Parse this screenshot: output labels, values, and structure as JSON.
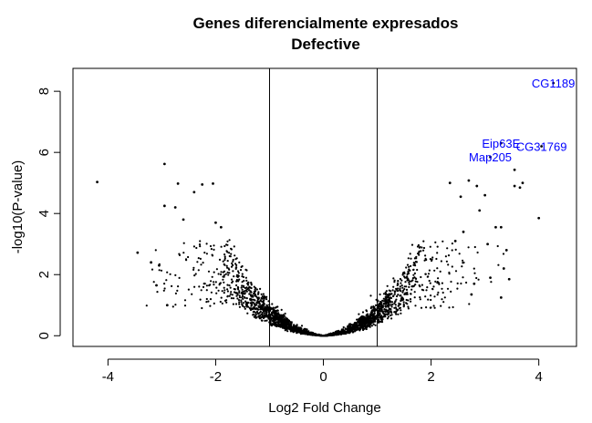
{
  "chart_data": {
    "type": "scatter",
    "title": "Genes diferencialmente expresados",
    "subtitle": "Defective",
    "xlabel": "Log2 Fold Change",
    "ylabel": "-log10(P-value)",
    "xlim": [
      -4.65,
      4.7
    ],
    "ylim": [
      -0.35,
      8.75
    ],
    "xticks": [
      -4,
      -2,
      0,
      2,
      4
    ],
    "xtick_labels": [
      "-4",
      "-2",
      "0",
      "2",
      "4"
    ],
    "yticks": [
      0,
      2,
      4,
      6,
      8
    ],
    "ytick_labels": [
      "0",
      "2",
      "4",
      "6",
      "8"
    ],
    "vlines": [
      -1,
      1
    ],
    "grid": false,
    "point_color": "#000000",
    "label_color": "#0000ff",
    "labeled_points": [
      {
        "label": "CG1189",
        "x": 4.27,
        "y": 8.27
      },
      {
        "label": "Eip63E",
        "x": 3.3,
        "y": 6.3
      },
      {
        "label": "CG31769",
        "x": 4.05,
        "y": 6.2
      },
      {
        "label": "Map205",
        "x": 3.1,
        "y": 5.85
      }
    ],
    "highlight_points": [
      {
        "x": -4.2,
        "y": 5.03
      },
      {
        "x": -2.95,
        "y": 5.62
      },
      {
        "x": -2.7,
        "y": 4.98
      },
      {
        "x": -2.25,
        "y": 4.95
      },
      {
        "x": -2.05,
        "y": 4.98
      },
      {
        "x": -2.4,
        "y": 4.7
      },
      {
        "x": -2.75,
        "y": 4.2
      },
      {
        "x": -2.95,
        "y": 4.25
      },
      {
        "x": -2.6,
        "y": 3.8
      },
      {
        "x": -2.0,
        "y": 3.7
      },
      {
        "x": -1.9,
        "y": 3.55
      },
      {
        "x": -3.45,
        "y": 2.72
      },
      {
        "x": -3.2,
        "y": 2.4
      },
      {
        "x": -3.05,
        "y": 2.3
      },
      {
        "x": -2.9,
        "y": 1.0
      },
      {
        "x": -3.1,
        "y": 1.65
      },
      {
        "x": 2.35,
        "y": 5.0
      },
      {
        "x": 2.7,
        "y": 5.08
      },
      {
        "x": 2.85,
        "y": 4.9
      },
      {
        "x": 2.55,
        "y": 4.55
      },
      {
        "x": 3.0,
        "y": 4.6
      },
      {
        "x": 2.9,
        "y": 4.1
      },
      {
        "x": 3.55,
        "y": 5.43
      },
      {
        "x": 3.55,
        "y": 4.9
      },
      {
        "x": 3.7,
        "y": 5.0
      },
      {
        "x": 3.65,
        "y": 4.85
      },
      {
        "x": 4.0,
        "y": 3.85
      },
      {
        "x": 3.2,
        "y": 3.55
      },
      {
        "x": 3.3,
        "y": 3.55
      },
      {
        "x": 3.4,
        "y": 2.8
      },
      {
        "x": 3.35,
        "y": 2.2
      },
      {
        "x": 3.45,
        "y": 1.85
      },
      {
        "x": 3.3,
        "y": 1.25
      },
      {
        "x": 2.8,
        "y": 1.7
      },
      {
        "x": 2.75,
        "y": 1.35
      },
      {
        "x": 3.1,
        "y": 1.9
      },
      {
        "x": 2.6,
        "y": 3.4
      },
      {
        "x": 2.45,
        "y": 3.1
      },
      {
        "x": 3.05,
        "y": 3.0
      }
    ],
    "bulk_points_estimated": 2500
  }
}
